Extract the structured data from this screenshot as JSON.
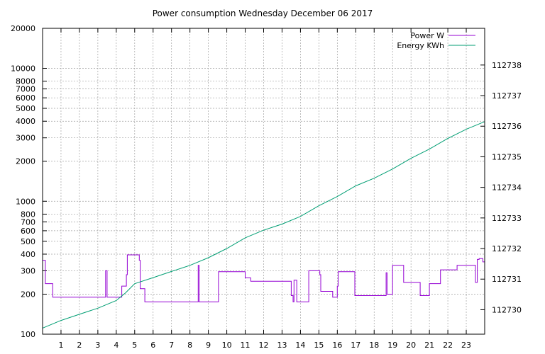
{
  "chart_data": {
    "type": "line",
    "title": "Power consumption Wednesday December 06 2017",
    "x_ticks": [
      1,
      2,
      3,
      4,
      5,
      6,
      7,
      8,
      9,
      10,
      11,
      12,
      13,
      14,
      15,
      16,
      17,
      18,
      19,
      20,
      21,
      22,
      23
    ],
    "xlim": [
      0,
      24
    ],
    "y_left": {
      "scale": "log",
      "lim": [
        100,
        20000
      ],
      "ticks": [
        100,
        200,
        300,
        400,
        500,
        600,
        700,
        800,
        1000,
        2000,
        3000,
        4000,
        5000,
        6000,
        7000,
        8000,
        10000,
        20000
      ]
    },
    "y_right": {
      "scale": "linear",
      "lim": [
        112729.2,
        112739.2
      ],
      "ticks": [
        112730,
        112731,
        112732,
        112733,
        112734,
        112735,
        112736,
        112737,
        112738
      ]
    },
    "grid": true,
    "legend_position": "top-right",
    "series": [
      {
        "name": "Power W",
        "axis": "left",
        "color": "#9400d3",
        "x": [
          0,
          0.12,
          0.15,
          0.5,
          0.55,
          3.4,
          3.42,
          3.45,
          3.5,
          4.25,
          4.3,
          4.5,
          4.55,
          4.6,
          5.2,
          5.25,
          5.3,
          5.5,
          5.55,
          8.4,
          8.45,
          8.48,
          8.5,
          9.0,
          9.5,
          9.55,
          10.5,
          10.9,
          11.0,
          11.2,
          11.3,
          13.5,
          13.55,
          13.6,
          13.65,
          13.7,
          13.8,
          14.4,
          14.45,
          15.0,
          15.05,
          15.1,
          15.7,
          15.75,
          15.9,
          16.0,
          16.05,
          16.1,
          16.5,
          16.9,
          16.95,
          17.5,
          18.5,
          18.6,
          18.65,
          18.7,
          18.9,
          19.0,
          19.2,
          19.55,
          19.6,
          20.0,
          20.5,
          20.55,
          21.0,
          21.5,
          21.6,
          22.0,
          22.5,
          22.7,
          23.5,
          23.55,
          23.6,
          23.7,
          23.8,
          23.9,
          24.0
        ],
        "y": [
          360,
          360,
          240,
          240,
          190,
          190,
          300,
          300,
          190,
          190,
          230,
          230,
          280,
          395,
          395,
          360,
          220,
          220,
          175,
          175,
          330,
          330,
          175,
          175,
          175,
          295,
          295,
          295,
          265,
          265,
          250,
          195,
          195,
          175,
          255,
          255,
          175,
          175,
          300,
          300,
          280,
          210,
          210,
          190,
          190,
          230,
          295,
          295,
          295,
          295,
          195,
          195,
          195,
          195,
          290,
          200,
          200,
          330,
          330,
          330,
          245,
          245,
          195,
          195,
          240,
          240,
          305,
          305,
          330,
          330,
          245,
          245,
          365,
          370,
          370,
          350,
          350
        ]
      },
      {
        "name": "Energy KWh",
        "axis": "right",
        "color": "#009e73",
        "x": [
          0,
          1,
          2,
          3,
          4,
          4.5,
          5,
          6,
          7,
          8,
          9,
          10,
          11,
          12,
          13,
          14,
          15,
          16,
          17,
          18,
          19,
          20,
          21,
          22,
          23,
          24
        ],
        "y": [
          112729.4,
          112729.65,
          112729.85,
          112730.05,
          112730.3,
          112730.55,
          112730.85,
          112731.05,
          112731.25,
          112731.45,
          112731.7,
          112732.0,
          112732.35,
          112732.6,
          112732.8,
          112733.05,
          112733.4,
          112733.7,
          112734.05,
          112734.3,
          112734.6,
          112734.95,
          112735.25,
          112735.6,
          112735.9,
          112736.15
        ]
      }
    ]
  }
}
